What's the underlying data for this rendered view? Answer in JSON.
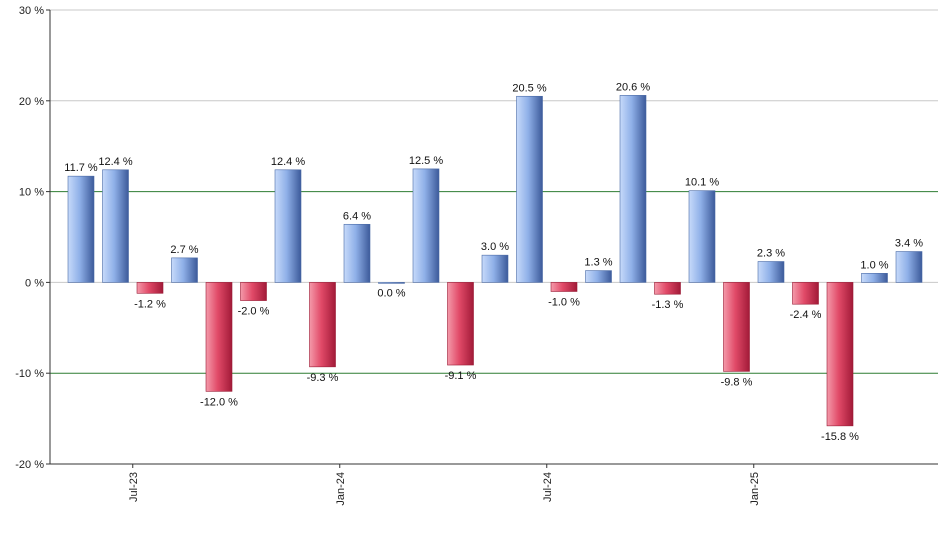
{
  "chart_data": {
    "type": "bar",
    "title": "",
    "xlabel": "",
    "ylabel": "",
    "ylim": [
      -20,
      30
    ],
    "y_ticks": [
      -20,
      -10,
      0,
      10,
      20,
      30
    ],
    "y_tick_labels": [
      "-20 %",
      "-10 %",
      "0 %",
      "10 %",
      "20 %",
      "30 %"
    ],
    "x_tick_labels": [
      {
        "label": "Jul-23",
        "index": 2
      },
      {
        "label": "Jan-24",
        "index": 8
      },
      {
        "label": "Jul-24",
        "index": 14
      },
      {
        "label": "Jan-25",
        "index": 20
      }
    ],
    "values": [
      11.7,
      12.4,
      -1.2,
      2.7,
      -12.0,
      -2.0,
      12.4,
      -9.3,
      6.4,
      0.0,
      12.5,
      -9.1,
      3.0,
      20.5,
      -1.0,
      1.3,
      20.6,
      -1.3,
      10.1,
      -9.8,
      2.3,
      -2.4,
      -15.8,
      1.0,
      3.4
    ],
    "labels": [
      "11.7 %",
      "12.4 %",
      "-1.2 %",
      "2.7 %",
      "-12.0 %",
      "-2.0 %",
      "12.4 %",
      "-9.3 %",
      "6.4 %",
      "0.0 %",
      "12.5 %",
      "-9.1 %",
      "3.0 %",
      "20.5 %",
      "-1.0 %",
      "1.3 %",
      "20.6 %",
      "-1.3 %",
      "10.1 %",
      "-9.8 %",
      "2.3 %",
      "-2.4 %",
      "-15.8 %",
      "1.0 %",
      "3.4 %"
    ],
    "colors": {
      "positive_light": "#b4ccf4",
      "positive_dark": "#3c5a9a",
      "negative_light": "#f07a90",
      "negative_dark": "#b01e3e",
      "grid_gray": "#c8c8c8",
      "grid_green": "#2e7d32",
      "axis": "#333333"
    },
    "grid": true,
    "green_lines_at": [
      10,
      -10
    ]
  }
}
